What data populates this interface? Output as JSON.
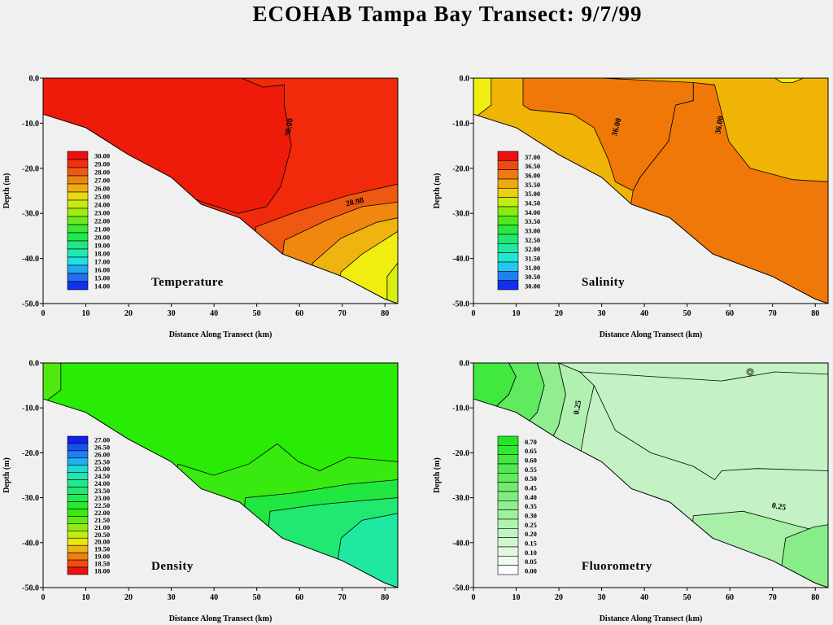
{
  "title": "ECOHAB Tampa Bay Transect: 9/7/99",
  "chart_data": [
    {
      "type": "heatmap",
      "name": "Temperature",
      "xlabel": "Distance Along Transect (km)",
      "ylabel": "Depth (m)",
      "xlim": [
        0,
        83
      ],
      "ylim": [
        -50,
        0
      ],
      "xticks": [
        "0",
        "10",
        "20",
        "30",
        "40",
        "50",
        "60",
        "70",
        "80"
      ],
      "yticks": [
        "0.0",
        "-10.0",
        "-20.0",
        "-30.0",
        "-40.0",
        "-50.0"
      ],
      "legend_levels": [
        "30.00",
        "29.00",
        "28.00",
        "27.00",
        "26.00",
        "25.00",
        "24.00",
        "23.00",
        "22.00",
        "21.00",
        "20.00",
        "19.00",
        "18.00",
        "17.00",
        "16.00",
        "15.00",
        "14.00"
      ],
      "legend_colors": [
        "#ee1010",
        "#f03010",
        "#ee5a10",
        "#ee8410",
        "#eeae10",
        "#ecd810",
        "#c8ec10",
        "#a0ec10",
        "#6ee820",
        "#3ce830",
        "#20e850",
        "#20e880",
        "#20e8b0",
        "#20e0e0",
        "#20a8f0",
        "#2070f0",
        "#1030f0"
      ],
      "contour_labels": [
        "30.00",
        "28.98"
      ],
      "region_colors": [
        "#f02a0a",
        "#ee5810",
        "#f08810",
        "#f0b410",
        "#f0ee10",
        "#d8ee10"
      ],
      "bottom_profile": [
        [
          0,
          -8
        ],
        [
          10,
          -11
        ],
        [
          20,
          -17
        ],
        [
          30,
          -22
        ],
        [
          37,
          -28
        ],
        [
          46,
          -31
        ],
        [
          56,
          -39
        ],
        [
          70,
          -44
        ],
        [
          80,
          -49
        ],
        [
          83,
          -50
        ]
      ],
      "color": "",
      "location": "top-left"
    },
    {
      "type": "heatmap",
      "name": "Salinity",
      "xlabel": "Distance Along Transect (km)",
      "ylabel": "Depth (m)",
      "xlim": [
        0,
        83
      ],
      "ylim": [
        -50,
        0
      ],
      "xticks": [
        "0",
        "10",
        "20",
        "30",
        "40",
        "50",
        "60",
        "70",
        "80"
      ],
      "yticks": [
        "0.0",
        "-10.0",
        "-20.0",
        "-30.0",
        "-40.0",
        "-50.0"
      ],
      "legend_levels": [
        "37.00",
        "36.50",
        "36.00",
        "35.50",
        "35.00",
        "34.50",
        "34.00",
        "33.50",
        "33.00",
        "32.50",
        "32.00",
        "31.50",
        "31.00",
        "30.50",
        "30.00"
      ],
      "legend_colors": [
        "#ee1010",
        "#ee4a10",
        "#ee7a10",
        "#eea810",
        "#ecd010",
        "#c0ec10",
        "#88ec10",
        "#50e820",
        "#28e840",
        "#20e870",
        "#20e8a0",
        "#20e8d0",
        "#20c8f0",
        "#2080f0",
        "#1030f0"
      ],
      "contour_labels": [
        "36.00",
        "36.00"
      ],
      "region_colors": [
        "#f0b406",
        "#f07808",
        "#f0ee10",
        "#f0b406"
      ],
      "bottom_profile": [
        [
          0,
          -8
        ],
        [
          10,
          -11
        ],
        [
          20,
          -17
        ],
        [
          30,
          -22
        ],
        [
          37,
          -28
        ],
        [
          46,
          -31
        ],
        [
          56,
          -39
        ],
        [
          70,
          -44
        ],
        [
          80,
          -49
        ],
        [
          83,
          -50
        ]
      ],
      "color": "",
      "location": "top-right"
    },
    {
      "type": "heatmap",
      "name": "Density",
      "xlabel": "Distance Along Transect (km)",
      "ylabel": "Depth (m)",
      "xlim": [
        0,
        83
      ],
      "ylim": [
        -50,
        0
      ],
      "xticks": [
        "0",
        "10",
        "20",
        "30",
        "40",
        "50",
        "60",
        "70",
        "80"
      ],
      "yticks": [
        "0.0",
        "-10.0",
        "-20.0",
        "-30.0",
        "-40.0",
        "-50.0"
      ],
      "legend_levels": [
        "27.00",
        "26.50",
        "26.00",
        "25.50",
        "25.00",
        "24.50",
        "24.00",
        "23.50",
        "23.00",
        "22.50",
        "22.00",
        "21.50",
        "21.00",
        "20.50",
        "20.00",
        "19.50",
        "19.00",
        "18.50",
        "18.00"
      ],
      "legend_colors": [
        "#1020f0",
        "#1850f0",
        "#2080f0",
        "#20b0f0",
        "#20d8d8",
        "#20e8b0",
        "#20e890",
        "#20e870",
        "#20e850",
        "#28e830",
        "#38ec10",
        "#60ec10",
        "#90ec10",
        "#c0ec10",
        "#e8e810",
        "#eeb410",
        "#ee8010",
        "#ee4c10",
        "#ee1010"
      ],
      "contour_labels": [],
      "region_colors": [
        "#28ec06",
        "#38ea10",
        "#20e840",
        "#20e870",
        "#20e8a0"
      ],
      "bottom_profile": [
        [
          0,
          -8
        ],
        [
          10,
          -11
        ],
        [
          20,
          -17
        ],
        [
          30,
          -22
        ],
        [
          37,
          -28
        ],
        [
          46,
          -31
        ],
        [
          56,
          -39
        ],
        [
          70,
          -44
        ],
        [
          80,
          -49
        ],
        [
          83,
          -50
        ]
      ],
      "color": "",
      "location": "bottom-left"
    },
    {
      "type": "heatmap",
      "name": "Fluorometry",
      "xlabel": "Distance Along Transect (km)",
      "ylabel": "Depth (m)",
      "xlim": [
        0,
        83
      ],
      "ylim": [
        -50,
        0
      ],
      "xticks": [
        "0",
        "10",
        "20",
        "30",
        "40",
        "50",
        "60",
        "70",
        "80"
      ],
      "yticks": [
        "0.0",
        "-10.0",
        "-20.0",
        "-30.0",
        "-40.0",
        "-50.0"
      ],
      "legend_levels": [
        "0.70",
        "0.65",
        "0.60",
        "0.55",
        "0.50",
        "0.45",
        "0.40",
        "0.35",
        "0.30",
        "0.25",
        "0.20",
        "0.15",
        "0.10",
        "0.05",
        "0.00"
      ],
      "legend_colors": [
        "#20e820",
        "#30e830",
        "#40e840",
        "#50e850",
        "#60ea60",
        "#70ea70",
        "#80ec80",
        "#90ee90",
        "#a0f0a0",
        "#b0f2b0",
        "#c0f4c0",
        "#d0f6d0",
        "#e0f8e0",
        "#f0fcf0",
        "#ffffff"
      ],
      "contour_labels": [
        "0.25",
        "0.25"
      ],
      "region_colors": [
        "#c4f2c4",
        "#40e840",
        "#60ea60",
        "#90ee90",
        "#b0f0b0",
        "#a8f0a8",
        "#88ec88"
      ],
      "bottom_profile": [
        [
          0,
          -8
        ],
        [
          10,
          -11
        ],
        [
          20,
          -17
        ],
        [
          30,
          -22
        ],
        [
          37,
          -28
        ],
        [
          46,
          -31
        ],
        [
          56,
          -39
        ],
        [
          70,
          -44
        ],
        [
          80,
          -49
        ],
        [
          83,
          -50
        ]
      ],
      "color": "",
      "location": "bottom-right"
    }
  ]
}
